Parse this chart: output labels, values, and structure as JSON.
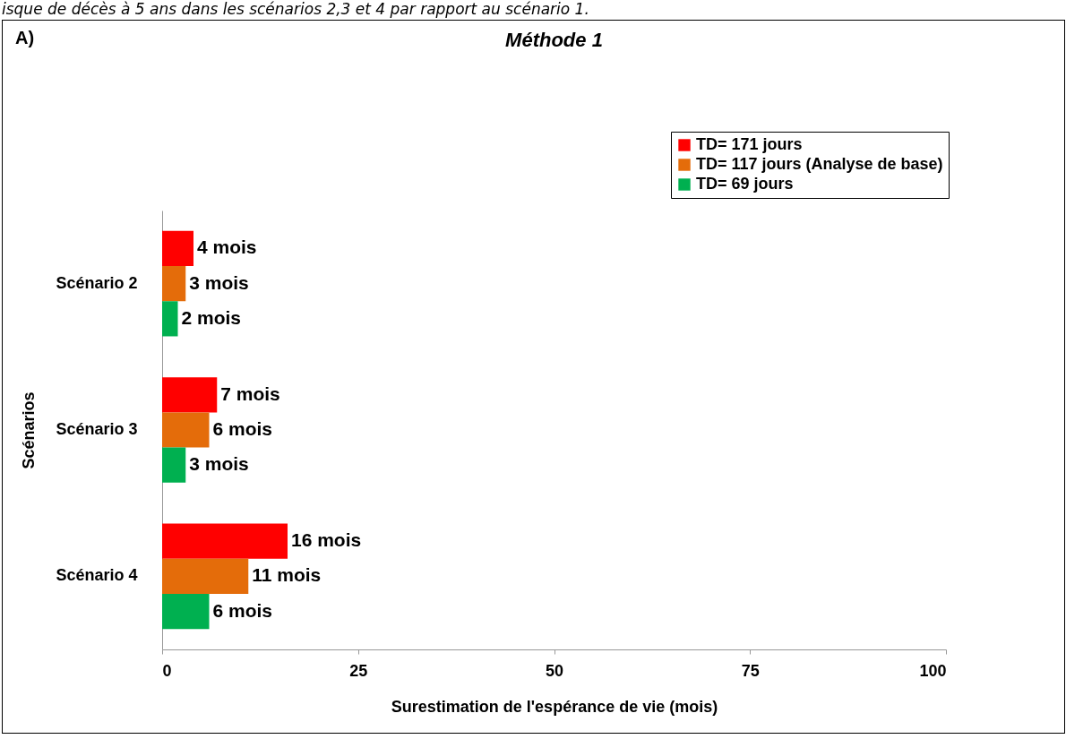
{
  "chart_data": {
    "type": "bar",
    "orientation": "horizontal",
    "title": "Méthode 1",
    "annotations": [
      "isque de décès à 5 ans dans les scénarios 2,3 et 4 par rapport au scénario 1.",
      "A)"
    ],
    "xlabel": "Surestimation de l'espérance de vie (mois)",
    "ylabel": "Scénarios",
    "categories": [
      "Scénario 2",
      "Scénario 3",
      "Scénario 4"
    ],
    "series": [
      {
        "name": "TD= 171 jours",
        "color": "#ff0000",
        "values": [
          4,
          7,
          16
        ],
        "value_labels": [
          "4 mois",
          "7 mois",
          "16 mois"
        ]
      },
      {
        "name": "TD= 117 jours (Analyse de base)",
        "color": "#e46c0a",
        "values": [
          3,
          6,
          11
        ],
        "value_labels": [
          "3 mois",
          "6 mois",
          "11 mois"
        ]
      },
      {
        "name": "TD= 69 jours",
        "color": "#00b050",
        "values": [
          2,
          3,
          6
        ],
        "value_labels": [
          "2 mois",
          "3 mois",
          "6 mois"
        ]
      }
    ],
    "xlim": [
      0,
      100
    ],
    "xticks": [
      0,
      25,
      50,
      75,
      100
    ],
    "grid": false,
    "legend": "top right"
  }
}
